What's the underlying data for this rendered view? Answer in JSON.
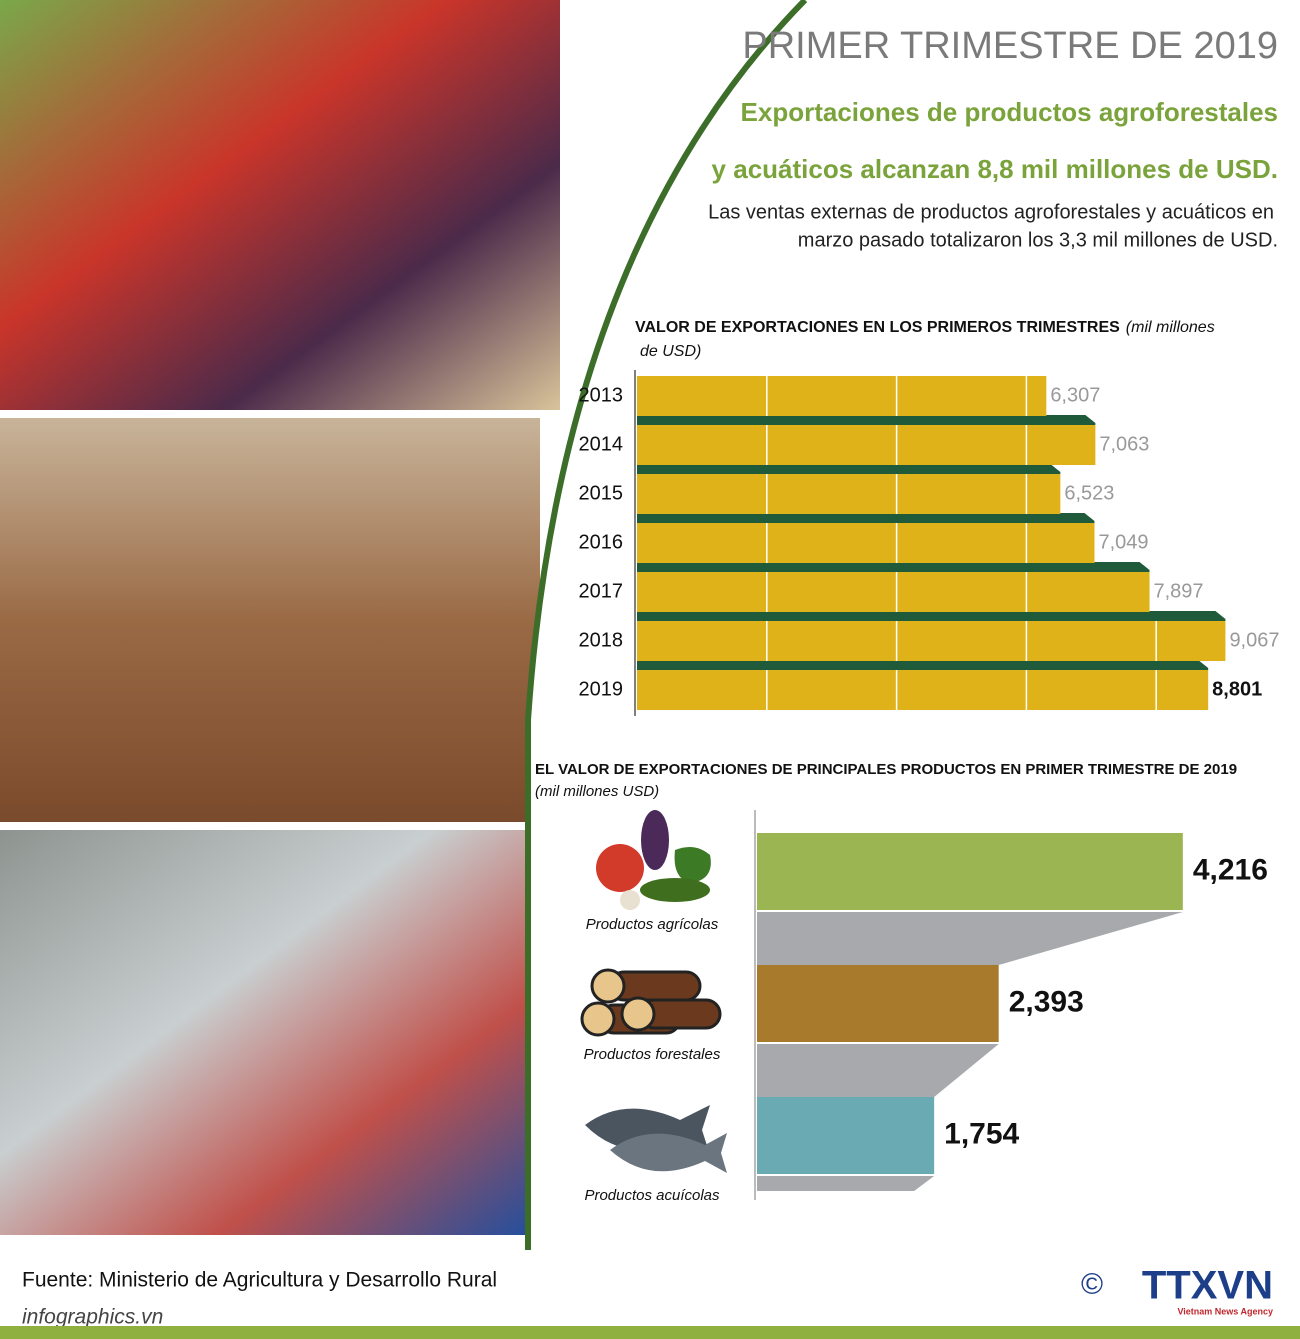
{
  "header": {
    "title": "PRIMER TRIMESTRE DE 2019",
    "subtitle": [
      "Exportaciones de productos agroforestales",
      "y acuáticos alcanzan 8,8 mil millones de USD."
    ],
    "description": [
      "Las ventas externas de productos agroforestales y acuáticos en",
      "marzo pasado totalizaron los 3,3 mil millones de USD."
    ]
  },
  "chart_data": [
    {
      "type": "hbar",
      "title": "VALOR DE EXPORTACIONES EN LOS PRIMEROS TRIMESTRES",
      "unit": [
        "(mil millones",
        "de USD)"
      ],
      "categories": [
        "2013",
        "2014",
        "2015",
        "2016",
        "2017",
        "2018",
        "2019"
      ],
      "values": [
        6.307,
        7.063,
        6.523,
        7.049,
        7.897,
        9.067,
        8.801
      ],
      "value_labels": [
        "6,307",
        "7,063",
        "6,523",
        "7,049",
        "7,897",
        "9,067",
        "8,801"
      ],
      "color": "#e0b21a",
      "xlim": [
        0,
        10
      ],
      "xticks": [
        2,
        4,
        6,
        8
      ],
      "grid": true
    },
    {
      "type": "product-bar",
      "title": "EL VALOR DE EXPORTACIONES DE PRINCIPALES PRODUCTOS EN PRIMER TRIMESTRE DE  2019",
      "unit": "(mil millones USD)",
      "categories": [
        "Productos agrícolas",
        "Productos forestales",
        "Productos acuícolas"
      ],
      "values": [
        4.216,
        2.393,
        1.754
      ],
      "value_labels": [
        "4,216",
        "2,393",
        "1,754"
      ],
      "colors": [
        "#9cb553",
        "#a87a2c",
        "#6aabb3"
      ],
      "xlim": [
        0,
        5
      ]
    }
  ],
  "source": "Fuente: Ministerio de Agricultura y Desarrollo Rural",
  "site": "infographics.vn",
  "copyright": "©",
  "logo": "TTXVN",
  "logo_sub": "Vietnam News Agency"
}
